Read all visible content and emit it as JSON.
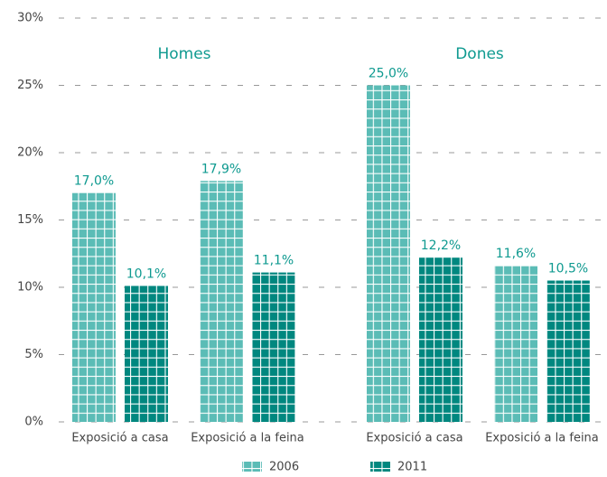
{
  "chart_data": {
    "type": "bar",
    "groups": [
      "Homes",
      "Dones"
    ],
    "categories": [
      "Exposició a casa",
      "Exposició a la feina",
      "Exposició a casa",
      "Exposició a la feina"
    ],
    "series": [
      {
        "name": "2006",
        "color": "#5bbcb6",
        "values": [
          17.0,
          17.9,
          25.0,
          11.6
        ],
        "value_labels": [
          "17,0%",
          "17,9%",
          "25,0%",
          "11,6%"
        ]
      },
      {
        "name": "2011",
        "color": "#00877f",
        "values": [
          10.1,
          11.1,
          12.2,
          10.5
        ],
        "value_labels": [
          "10,1%",
          "11,1%",
          "12,2%",
          "10,5%"
        ]
      }
    ],
    "ylim": [
      0,
      30
    ],
    "yticks": [
      {
        "value": 0,
        "label": "0%"
      },
      {
        "value": 5,
        "label": "5%"
      },
      {
        "value": 10,
        "label": "10%"
      },
      {
        "value": 15,
        "label": "15%"
      },
      {
        "value": 20,
        "label": "20%"
      },
      {
        "value": 25,
        "label": "25%"
      },
      {
        "value": 30,
        "label": "30%"
      }
    ],
    "grid": true
  }
}
